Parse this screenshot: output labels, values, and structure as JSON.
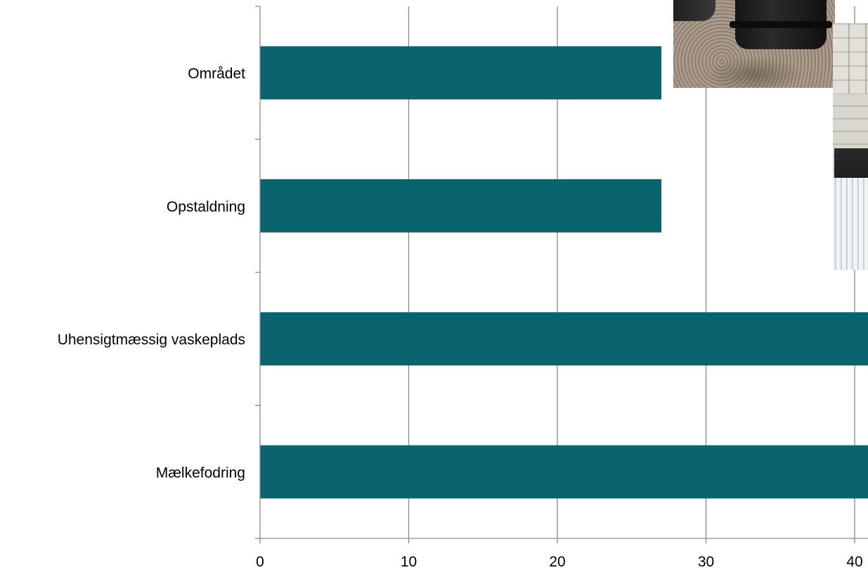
{
  "chart_data": {
    "type": "bar",
    "orientation": "horizontal",
    "categories": [
      "Området",
      "Opstaldning",
      "Uhensigtmæssig vaskeplads",
      "Mælkefodring"
    ],
    "values": [
      27,
      27,
      42,
      42
    ],
    "xlim": [
      0,
      40
    ],
    "xticks": [
      0,
      10,
      20,
      30,
      40
    ],
    "grid": true,
    "bar_color": "#0a6470",
    "grid_color": "#8a8a8a",
    "title": "",
    "xlabel": "",
    "ylabel": ""
  },
  "decorations": {
    "photo_1": "tank-on-gravel-photo",
    "photo_2": "wall-and-water-photo"
  }
}
